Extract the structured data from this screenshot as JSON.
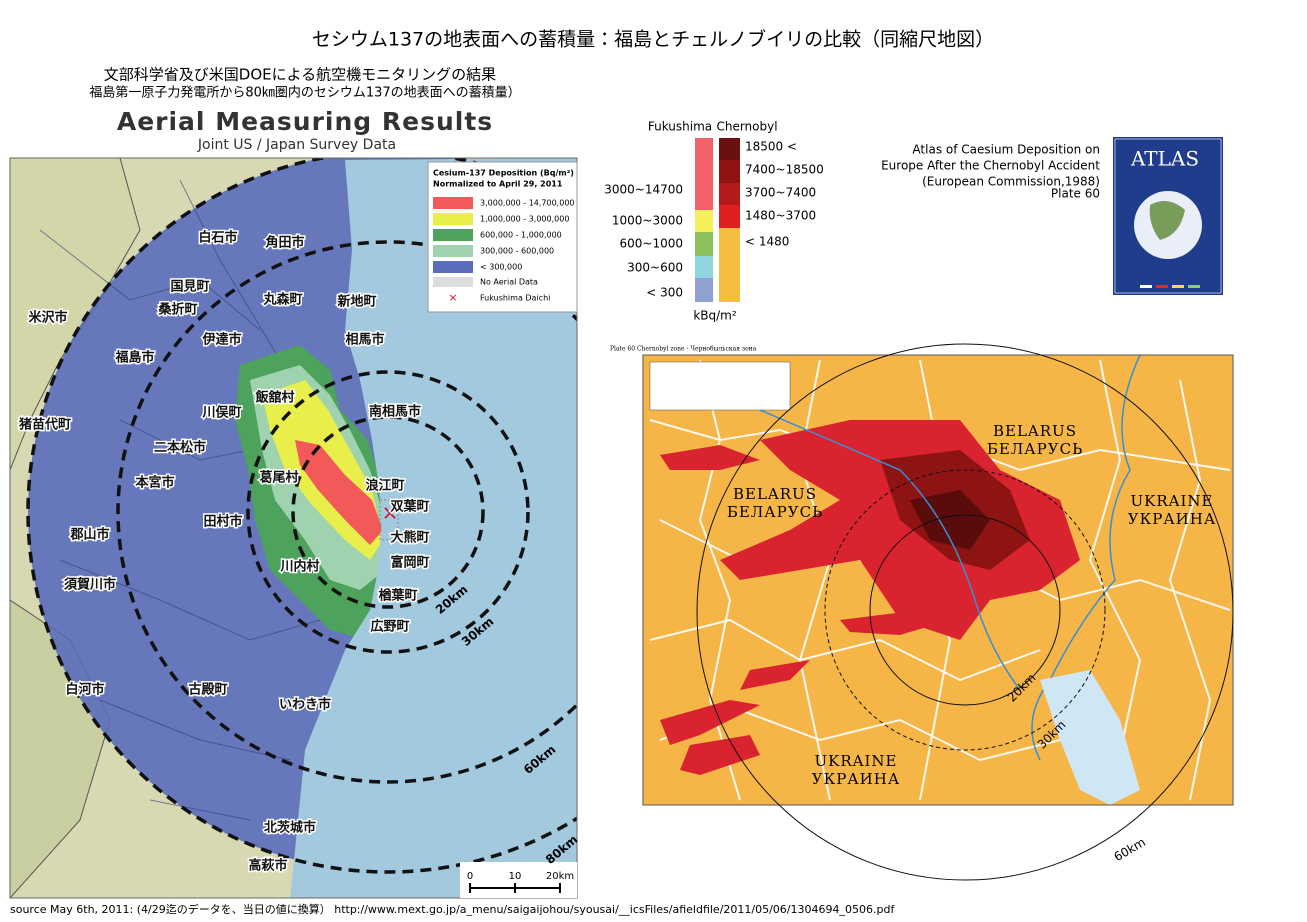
{
  "title": "セシウム137の地表面への蓄積量：福島とチェルノブイリの比較（同縮尺地図）",
  "fukushima_map": {
    "subtitle_lines": [
      "文部科学省及び米国DOEによる航空機モニタリングの結果",
      "福島第一原子力発電所から80㎞圏内のセシウム137の地表面への蓄積量）"
    ],
    "heading": "Aerial Measuring Results",
    "subheading": "Joint US / Japan Survey Data",
    "legend": {
      "title": "Cesium-137 Deposition (Bq/m²)",
      "note": "Normalized to April 29, 2011",
      "items": [
        "3,000,000 - 14,700,000",
        "1,000,000 - 3,000,000",
        "600,000 - 1,000,000",
        "300,000 - 600,000",
        "< 300,000",
        "No Aerial Data",
        "Fukushima Daichi"
      ]
    },
    "places": [
      "白石市",
      "角田市",
      "国見町",
      "桑折町",
      "丸森町",
      "新地町",
      "米沢市",
      "伊達市",
      "相馬市",
      "福島市",
      "飯舘村",
      "川俣町",
      "南相馬市",
      "猪苗代町",
      "二本松市",
      "葛尾村",
      "本宮市",
      "浪江町",
      "双葉町",
      "田村市",
      "郡山市",
      "大熊町",
      "川内村",
      "富岡町",
      "須賀川市",
      "楢葉町",
      "広野町",
      "白河市",
      "古殿町",
      "いわき市",
      "北茨城市",
      "高萩市"
    ],
    "distance_labels": [
      "20km",
      "30km",
      "60km",
      "80km"
    ],
    "scale_labels": [
      "0",
      "10",
      "20km"
    ]
  },
  "comparison_legend": {
    "fukushima_header": "Fukushima",
    "chernobyl_header": "Chernobyl",
    "fukushima_ranges": [
      "3000~14700",
      "1000~3000",
      "600~1000",
      "300~600",
      "< 300"
    ],
    "chernobyl_ranges": [
      "18500 <",
      "7400~18500",
      "3700~7400",
      "1480~3700",
      "< 1480"
    ],
    "unit": "kBq/m²"
  },
  "atlas": {
    "caption_lines": [
      "Atlas of Caesium Deposition on",
      "Europe After the Chernobyl Accident",
      "(European Commission,1988)",
      "Plate 60"
    ],
    "cover_title": "ATLAS"
  },
  "chernobyl_map": {
    "plate_header": "Plate 60 Chernobyl zone - Чернобыльская зона",
    "countries": [
      {
        "latin": "BELARUS",
        "cyrillic": "БЕЛАРУСЬ"
      },
      {
        "latin": "BELARUS",
        "cyrillic": "БЕЛАРУСЬ"
      },
      {
        "latin": "UKRAINE",
        "cyrillic": "УКРАИНА"
      },
      {
        "latin": "UKRAINE",
        "cyrillic": "УКРАИНА"
      }
    ],
    "distance_labels": [
      "20km",
      "30km",
      "60km"
    ]
  },
  "source": "source May 6th, 2011: (4/29迄のデータを、当日の値に換算） http://www.mext.go.jp/a_menu/saigaijohou/syousai/__icsFiles/afieldfile/2011/05/06/1304694_0506.pdf"
}
